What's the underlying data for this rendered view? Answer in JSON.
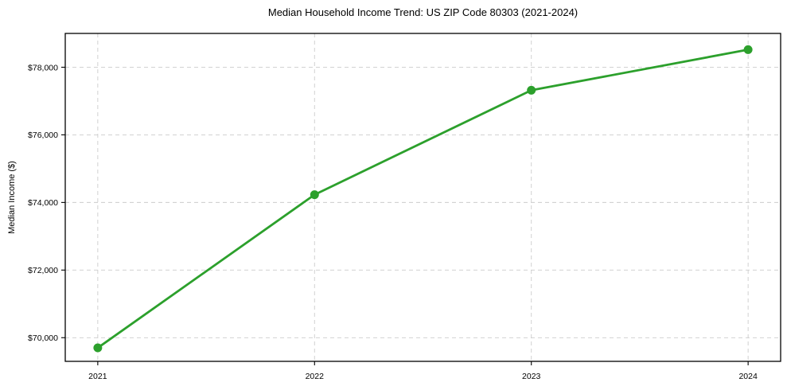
{
  "chart_data": {
    "type": "line",
    "title": "Median Household Income Trend: US ZIP Code 80303 (2021-2024)",
    "xlabel": "",
    "ylabel": "Median Income ($)",
    "x": [
      2021,
      2022,
      2023,
      2024
    ],
    "x_tick_labels": [
      "2021",
      "2022",
      "2023",
      "2024"
    ],
    "values": [
      69700,
      74230,
      77320,
      78520
    ],
    "y_ticks": [
      70000,
      72000,
      74000,
      76000,
      78000
    ],
    "y_tick_labels": [
      "$70,000",
      "$72,000",
      "$74,000",
      "$76,000",
      "$78,000"
    ],
    "xlim": [
      2020.85,
      2024.15
    ],
    "ylim": [
      69300,
      79000
    ],
    "grid": true,
    "grid_style": "dashed",
    "legend_position": "none",
    "line_color": "#2ca02c",
    "marker": "circle",
    "grid_color": "#cccccc",
    "axis_color": "#000000",
    "background_color": "#ffffff"
  }
}
